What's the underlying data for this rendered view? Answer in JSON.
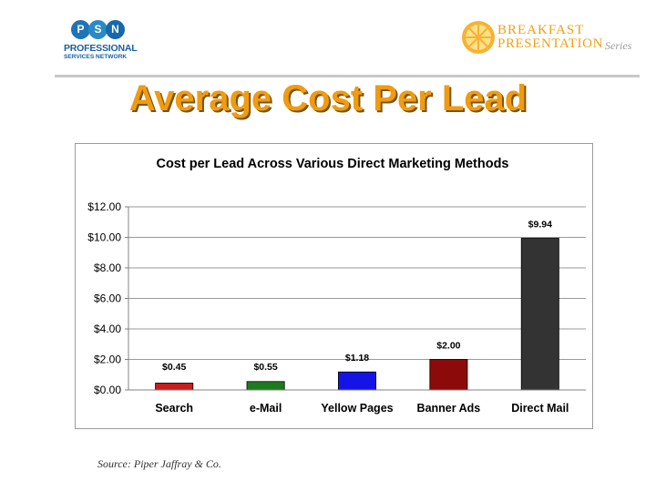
{
  "header": {
    "psn_logo": {
      "letters": [
        "P",
        "S",
        "N"
      ],
      "line1": "PROFESSIONAL",
      "line2": "SERVICES NETWORK"
    },
    "bp_logo": {
      "line1": "BREAKFAST",
      "line2": "PRESENTATION",
      "series": "Series"
    }
  },
  "slide": {
    "title": "Average Cost Per Lead",
    "source": "Source: Piper Jaffray & Co."
  },
  "colors": {
    "title": "#f09b10",
    "accent_blue": "#1a5ea6",
    "orange": "#f0a018"
  },
  "chart_data": {
    "type": "bar",
    "title": "Cost per Lead Across Various Direct Marketing Methods",
    "categories": [
      "Search",
      "e-Mail",
      "Yellow Pages",
      "Banner Ads",
      "Direct Mail"
    ],
    "values": [
      0.45,
      0.55,
      1.18,
      2.0,
      9.94
    ],
    "data_labels": [
      "$0.45",
      "$0.55",
      "$1.18",
      "$2.00",
      "$9.94"
    ],
    "bar_colors": [
      "#c81e1e",
      "#1e7a1e",
      "#1414e6",
      "#8c0a0a",
      "#333333"
    ],
    "ylim": [
      0,
      12
    ],
    "yticks": [
      0,
      2,
      4,
      6,
      8,
      10,
      12
    ],
    "ytick_labels": [
      "$0.00",
      "$2.00",
      "$4.00",
      "$6.00",
      "$8.00",
      "$10.00",
      "$12.00"
    ],
    "grid": true,
    "xlabel": "",
    "ylabel": ""
  }
}
